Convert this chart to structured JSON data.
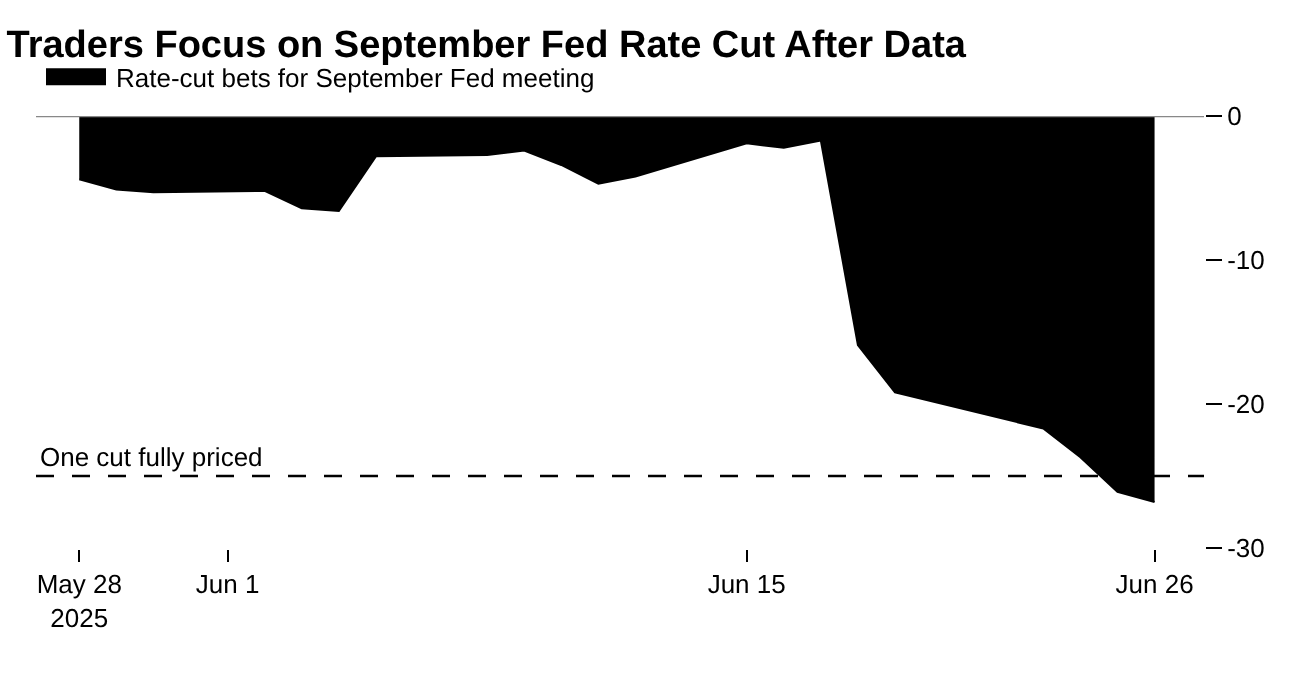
{
  "chart_data": {
    "type": "area",
    "title": "Traders Focus on September Fed Rate Cut After Data",
    "x": [
      "2025-05-28",
      "2025-05-29",
      "2025-05-30",
      "2025-06-02",
      "2025-06-03",
      "2025-06-04",
      "2025-06-05",
      "2025-06-08",
      "2025-06-09",
      "2025-06-10",
      "2025-06-11",
      "2025-06-12",
      "2025-06-15",
      "2025-06-16",
      "2025-06-17",
      "2025-06-18",
      "2025-06-19",
      "2025-06-23",
      "2025-06-24",
      "2025-06-25",
      "2025-06-26"
    ],
    "series": [
      {
        "name": "Rate-cut bets for September Fed meeting",
        "color": "#000000",
        "values": [
          -4.4,
          -5.1,
          -5.3,
          -5.2,
          -6.4,
          -6.6,
          -2.8,
          -2.7,
          -2.4,
          -3.4,
          -4.7,
          -4.2,
          -1.9,
          -2.2,
          -1.7,
          -15.9,
          -19.2,
          -21.7,
          -23.7,
          -26.1,
          -26.8
        ]
      }
    ],
    "xlim": [
      "2025-05-26T20:00",
      "2025-06-27T08:00"
    ],
    "xticks": [
      {
        "value": "2025-05-28",
        "label": "May 28\n2025"
      },
      {
        "value": "2025-06-01",
        "label": "Jun 1"
      },
      {
        "value": "2025-06-15",
        "label": "Jun 15"
      },
      {
        "value": "2025-06-26",
        "label": "Jun 26"
      }
    ],
    "ylim": [
      -30,
      0
    ],
    "yticks": [
      0,
      -10,
      -20,
      -30
    ],
    "ref_lines": [
      {
        "axis": "y",
        "value": 0,
        "color": "#888888",
        "line_style": "solid"
      },
      {
        "axis": "y",
        "value": -25,
        "label": "One cut fully priced",
        "color": "#000000",
        "line_style": "dashed"
      }
    ],
    "legend": "top left"
  }
}
